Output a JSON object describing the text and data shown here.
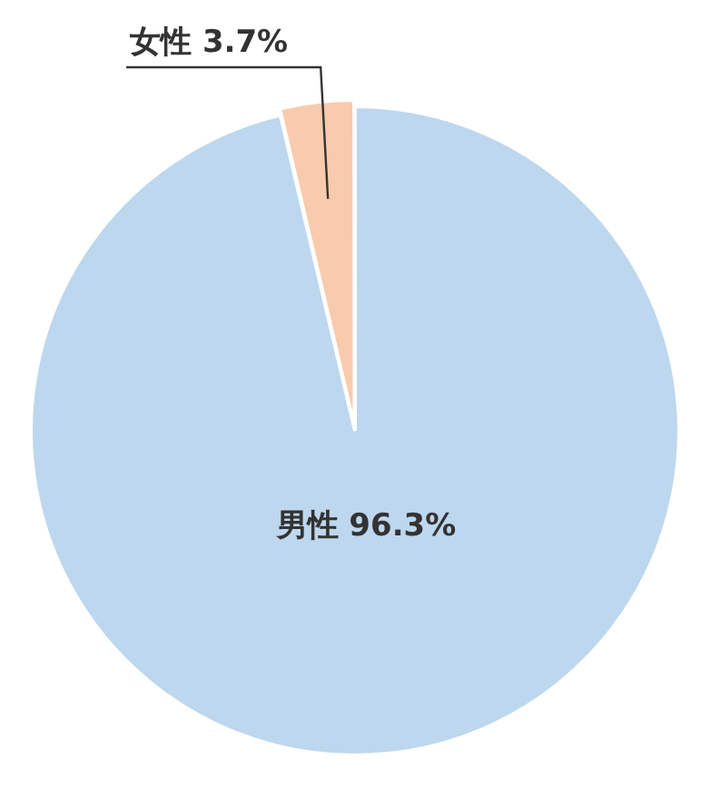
{
  "chart_data": {
    "type": "pie",
    "categories": [
      "男性",
      "女性"
    ],
    "values": [
      96.3,
      3.7
    ],
    "colors": [
      "#bdd7ee",
      "#f8cbad"
    ],
    "data_labels": true,
    "value_labels": [
      "96.3%",
      "3.7%"
    ],
    "legend": false
  }
}
